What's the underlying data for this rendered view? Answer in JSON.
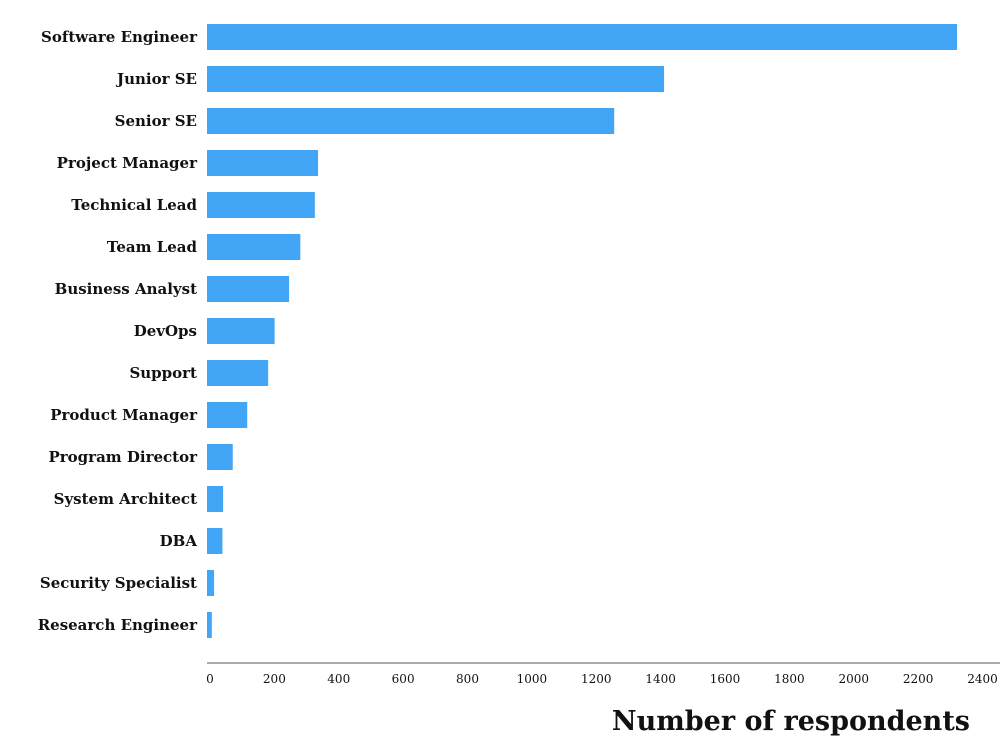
{
  "chart_data": {
    "type": "bar",
    "orientation": "horizontal",
    "categories": [
      "Software Engineer",
      "Junior SE",
      "Senior SE",
      "Project Manager",
      "Technical Lead",
      "Team Lead",
      "Business Analyst",
      "DevOps",
      "Support",
      "Product Manager",
      "Program Director",
      "System Architect",
      "DBA",
      "Security Specialist",
      "Research Engineer"
    ],
    "values": [
      2330,
      1420,
      1265,
      345,
      335,
      290,
      255,
      210,
      190,
      125,
      80,
      50,
      48,
      22,
      15
    ],
    "xlabel": "Number of respondents",
    "ylabel": "",
    "xlim": [
      0,
      2450
    ],
    "xticks": [
      "0",
      "200",
      "400",
      "600",
      "800",
      "1000",
      "1200",
      "1400",
      "1600",
      "1800",
      "2000",
      "2200",
      "2400"
    ],
    "grid": false,
    "bar_color": "#42a5f5",
    "axis_color": "#555555"
  }
}
